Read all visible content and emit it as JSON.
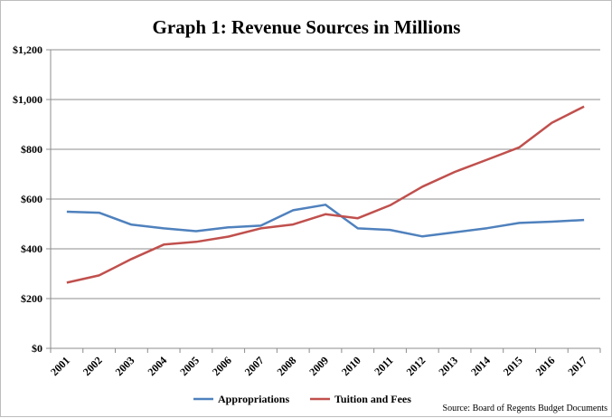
{
  "chart_data": {
    "type": "line",
    "title": "Graph 1: Revenue Sources in Millions",
    "categories": [
      "2001",
      "2002",
      "2003",
      "2004",
      "2005",
      "2006",
      "2007",
      "2008",
      "2009",
      "2010",
      "2011",
      "2012",
      "2013",
      "2014",
      "2015",
      "2016",
      "2017"
    ],
    "series": [
      {
        "name": "Appropriations",
        "color": "#4F81BD",
        "values": [
          549,
          545,
          497,
          482,
          471,
          486,
          493,
          555,
          577,
          482,
          476,
          450,
          466,
          483,
          504,
          509,
          516
        ]
      },
      {
        "name": "Tuition and Fees",
        "color": "#C0504D",
        "values": [
          264,
          293,
          359,
          417,
          428,
          449,
          482,
          498,
          539,
          523,
          575,
          650,
          709,
          758,
          808,
          906,
          972
        ]
      }
    ],
    "ylim": [
      0,
      1200
    ],
    "yticks": [
      0,
      200,
      400,
      600,
      800,
      1000,
      1200
    ],
    "ytick_labels": [
      "$0",
      "$200",
      "$400",
      "$600",
      "$800",
      "$1,000",
      "$1,200"
    ],
    "grid": true,
    "legend_position": "bottom",
    "source_note": "Source: Board of Regents Budget Documents"
  }
}
